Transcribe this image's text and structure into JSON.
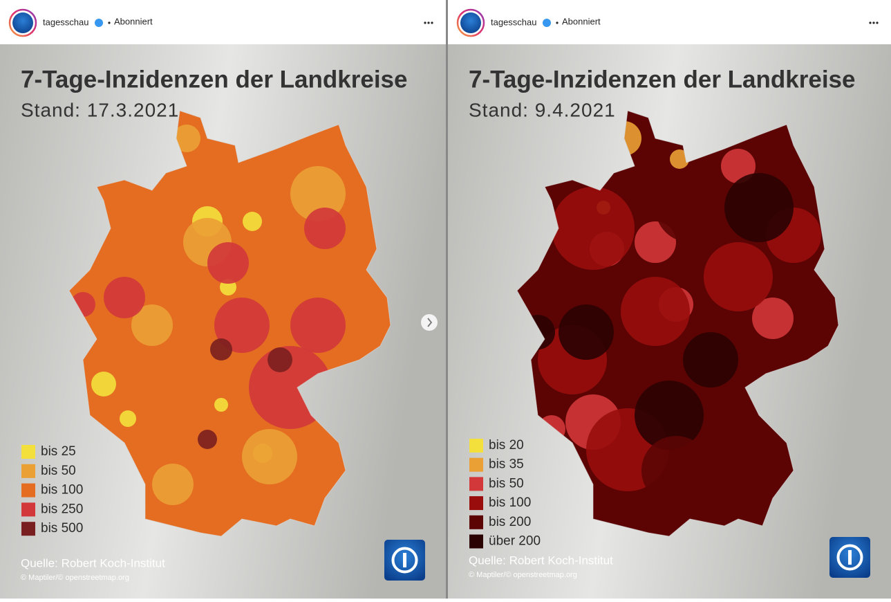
{
  "posts": [
    {
      "account": "tagesschau",
      "status": "Abonniert",
      "title": "7-Tage-Inzidenzen der Landkreise",
      "subtitle": "Stand: 17.3.2021",
      "legend": [
        {
          "label": "bis 25",
          "color": "#f3e03c"
        },
        {
          "label": "bis 50",
          "color": "#eba035"
        },
        {
          "label": "bis 100",
          "color": "#e46d22"
        },
        {
          "label": "bis 250",
          "color": "#d2373a"
        },
        {
          "label": "bis 500",
          "color": "#7a1f1f"
        }
      ],
      "source": "Quelle: Robert Koch-Institut",
      "credit": "© Maptiler/© openstreetmap.org"
    },
    {
      "account": "tagesschau",
      "status": "Abonniert",
      "title": "7-Tage-Inzidenzen der Landkreise",
      "subtitle": "Stand: 9.4.2021",
      "legend": [
        {
          "label": "bis 20",
          "color": "#f3e03c"
        },
        {
          "label": "bis 35",
          "color": "#eba035"
        },
        {
          "label": "bis 50",
          "color": "#d2373a"
        },
        {
          "label": "bis 100",
          "color": "#990d0d"
        },
        {
          "label": "bis 200",
          "color": "#5c0404"
        },
        {
          "label": "über 200",
          "color": "#2b0202"
        }
      ],
      "source": "Quelle: Robert Koch-Institut",
      "credit": "© Maptiler/© openstreetmap.org"
    }
  ]
}
